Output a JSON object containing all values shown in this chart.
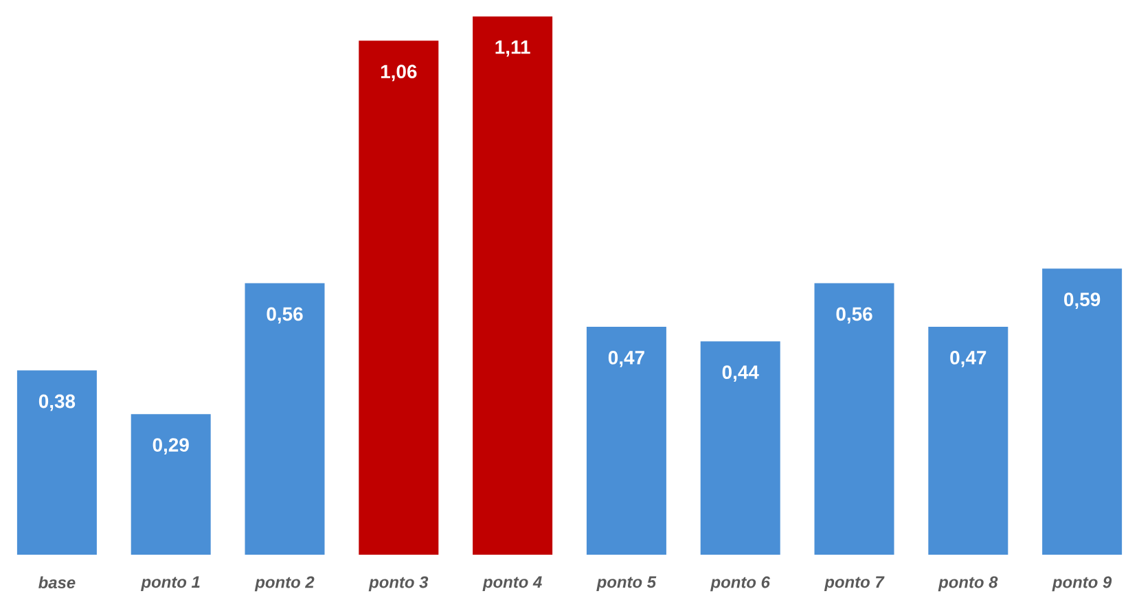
{
  "chart_data": {
    "type": "bar",
    "categories": [
      "base",
      "ponto 1",
      "ponto 2",
      "ponto 3",
      "ponto 4",
      "ponto 5",
      "ponto 6",
      "ponto 7",
      "ponto 8",
      "ponto 9"
    ],
    "values": [
      0.38,
      0.29,
      0.56,
      1.06,
      1.11,
      0.47,
      0.44,
      0.56,
      0.47,
      0.59
    ],
    "value_labels": [
      "0,38",
      "0,29",
      "0,56",
      "1,06",
      "1,11",
      "0,47",
      "0,44",
      "0,56",
      "0,47",
      "0,59"
    ],
    "colors": [
      "#4a8fd6",
      "#4a8fd6",
      "#4a8fd6",
      "#c00000",
      "#c00000",
      "#4a8fd6",
      "#4a8fd6",
      "#4a8fd6",
      "#4a8fd6",
      "#4a8fd6"
    ],
    "ylim": [
      0,
      1.11
    ],
    "tick_labels": "x"
  }
}
